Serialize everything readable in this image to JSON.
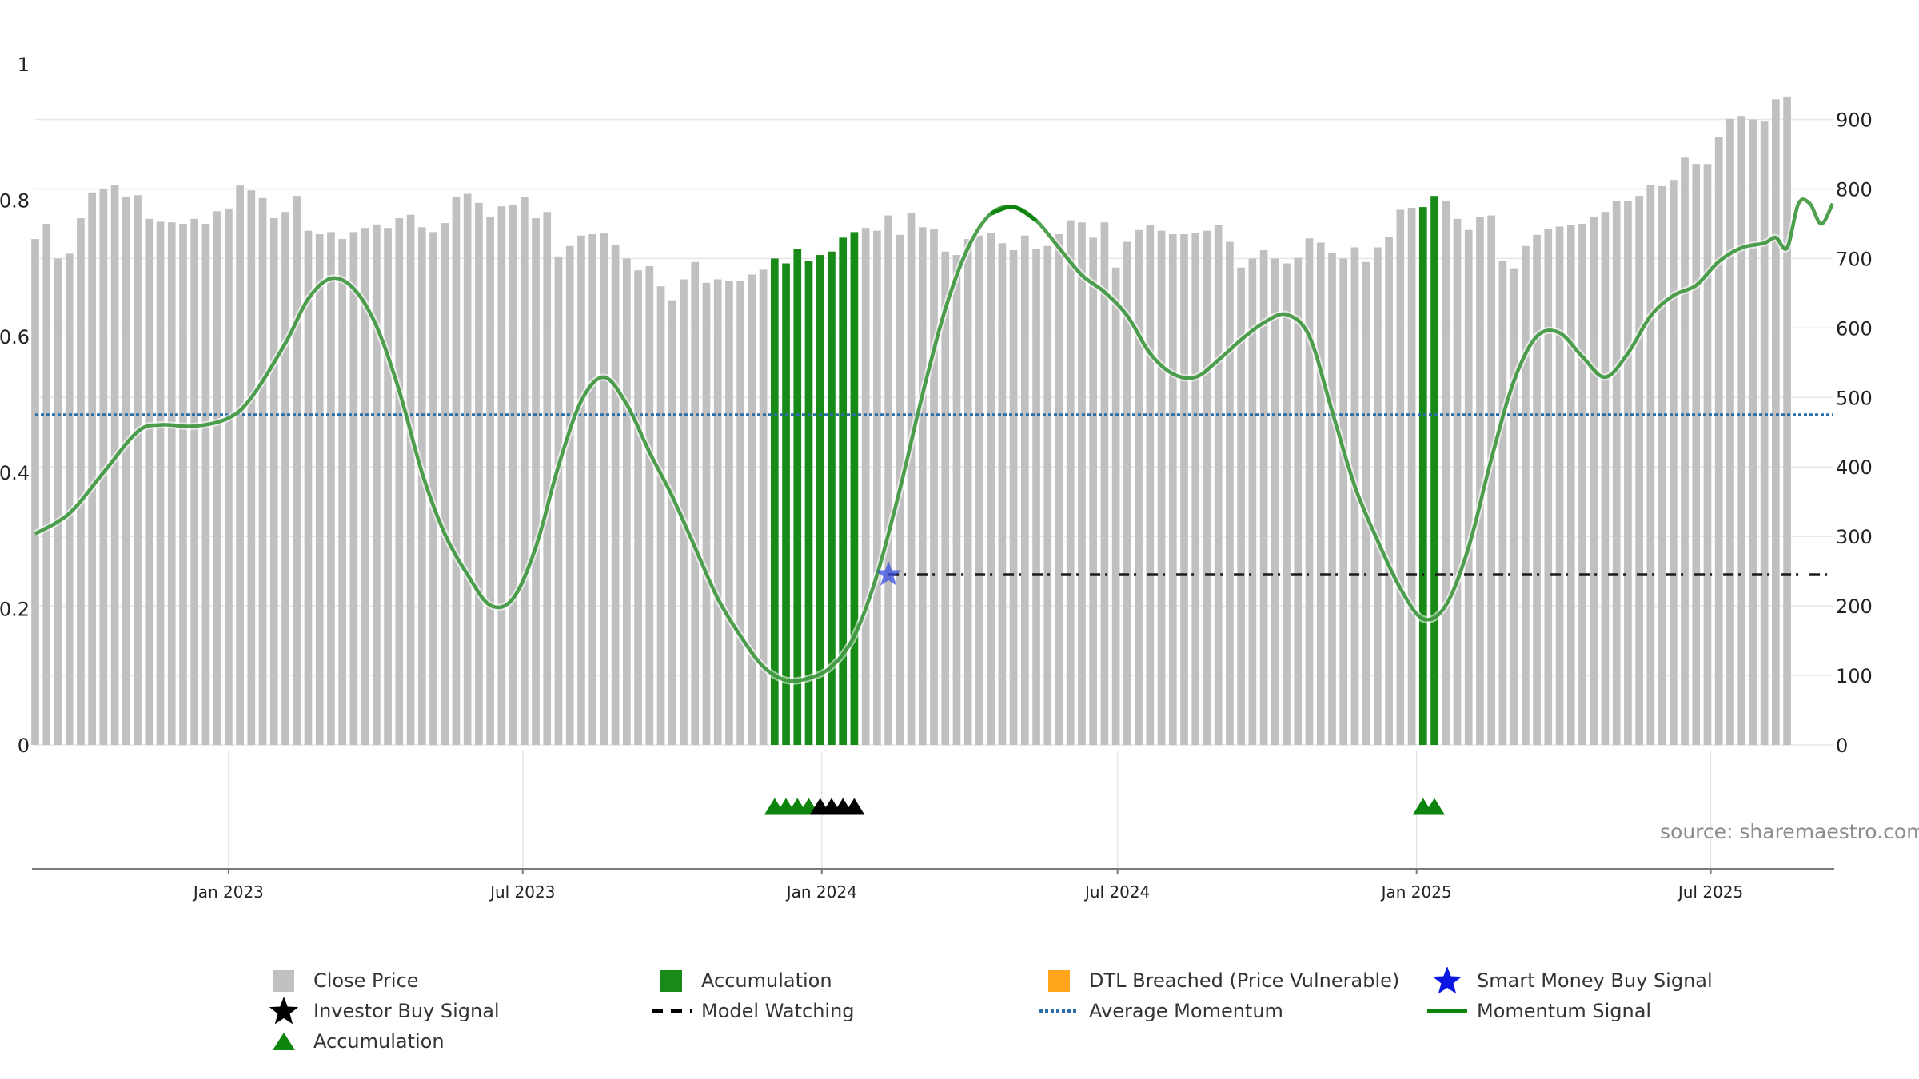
{
  "chart_data": {
    "type": "bar",
    "source_text": "source: sharemaestro.com",
    "left_axis": {
      "ylim": [
        0,
        1
      ],
      "ticks": [
        "0",
        "0.2",
        "0.4",
        "0.6",
        "0.8",
        "1"
      ]
    },
    "right_axis": {
      "ylim": [
        0,
        980
      ],
      "ticks": [
        "0",
        "100",
        "200",
        "300",
        "400",
        "500",
        "600",
        "700",
        "800",
        "900"
      ]
    },
    "x_axis": {
      "start": "2022-09-04",
      "end": "2025-09-14",
      "ticks": [
        {
          "date": "2023-01-01",
          "label": "Jan 2023"
        },
        {
          "date": "2023-07-01",
          "label": "Jul 2023"
        },
        {
          "date": "2024-01-01",
          "label": "Jan 2024"
        },
        {
          "date": "2024-07-01",
          "label": "Jul 2024"
        },
        {
          "date": "2025-01-01",
          "label": "Jan 2025"
        },
        {
          "date": "2025-07-01",
          "label": "Jul 2025"
        }
      ]
    },
    "close_price": {
      "start": "2022-09-04",
      "interval_days": 7,
      "values": [
        728,
        750,
        700,
        707,
        758,
        795,
        800,
        806,
        788,
        791,
        757,
        753,
        752,
        750,
        757,
        750,
        768,
        772,
        805,
        798,
        787,
        758,
        767,
        790,
        740,
        735,
        738,
        728,
        738,
        744,
        749,
        744,
        758,
        763,
        745,
        738,
        751,
        788,
        793,
        780,
        760,
        775,
        777,
        788,
        758,
        767,
        703,
        718,
        733,
        735,
        736,
        720,
        700,
        683,
        689,
        660,
        640,
        670,
        695,
        665,
        670,
        668,
        668,
        677,
        684,
        700,
        693,
        714,
        697,
        705,
        710,
        730,
        738,
        744,
        740,
        762,
        734,
        765,
        745,
        742,
        710,
        705,
        728,
        733,
        737,
        722,
        712,
        733,
        714,
        718,
        735,
        755,
        752,
        730,
        752,
        687,
        724,
        741,
        748,
        740,
        735,
        735,
        737,
        740,
        748,
        724,
        687,
        700,
        712,
        700,
        693,
        701,
        729,
        723,
        708,
        700,
        716,
        695,
        716,
        731,
        770,
        773,
        774,
        790,
        783,
        757,
        741,
        760,
        762,
        696,
        686,
        718,
        734,
        742,
        746,
        748,
        750,
        760,
        767,
        783,
        783,
        790,
        806,
        804,
        813,
        845,
        836,
        836,
        875,
        901,
        905,
        900,
        897,
        929,
        933
      ],
      "accumulation_ranges": [
        {
          "from": "2023-12-03",
          "to": "2024-01-21"
        },
        {
          "from": "2025-01-05",
          "to": "2025-01-12"
        }
      ]
    },
    "momentum": {
      "points": [
        [
          "2022-09-04",
          0.31
        ],
        [
          "2022-09-25",
          0.34
        ],
        [
          "2022-10-16",
          0.4
        ],
        [
          "2022-11-06",
          0.46
        ],
        [
          "2022-11-20",
          0.47
        ],
        [
          "2022-12-11",
          0.468
        ],
        [
          "2023-01-01",
          0.48
        ],
        [
          "2023-01-15",
          0.51
        ],
        [
          "2023-02-05",
          0.59
        ],
        [
          "2023-02-19",
          0.655
        ],
        [
          "2023-03-05",
          0.685
        ],
        [
          "2023-03-19",
          0.67
        ],
        [
          "2023-04-02",
          0.615
        ],
        [
          "2023-04-16",
          0.52
        ],
        [
          "2023-04-30",
          0.4
        ],
        [
          "2023-05-14",
          0.31
        ],
        [
          "2023-05-28",
          0.25
        ],
        [
          "2023-06-11",
          0.205
        ],
        [
          "2023-06-25",
          0.215
        ],
        [
          "2023-07-09",
          0.29
        ],
        [
          "2023-07-23",
          0.41
        ],
        [
          "2023-08-06",
          0.505
        ],
        [
          "2023-08-20",
          0.54
        ],
        [
          "2023-09-03",
          0.5
        ],
        [
          "2023-09-17",
          0.43
        ],
        [
          "2023-10-01",
          0.365
        ],
        [
          "2023-10-15",
          0.29
        ],
        [
          "2023-10-29",
          0.215
        ],
        [
          "2023-11-12",
          0.16
        ],
        [
          "2023-11-26",
          0.115
        ],
        [
          "2023-12-10",
          0.095
        ],
        [
          "2023-12-24",
          0.098
        ],
        [
          "2024-01-07",
          0.115
        ],
        [
          "2024-01-21",
          0.16
        ],
        [
          "2024-02-04",
          0.25
        ],
        [
          "2024-02-18",
          0.375
        ],
        [
          "2024-03-03",
          0.515
        ],
        [
          "2024-03-17",
          0.64
        ],
        [
          "2024-03-31",
          0.73
        ],
        [
          "2024-04-14",
          0.78
        ],
        [
          "2024-04-28",
          0.79
        ],
        [
          "2024-05-12",
          0.77
        ],
        [
          "2024-05-26",
          0.73
        ],
        [
          "2024-06-09",
          0.69
        ],
        [
          "2024-06-23",
          0.665
        ],
        [
          "2024-07-07",
          0.63
        ],
        [
          "2024-07-21",
          0.575
        ],
        [
          "2024-08-04",
          0.545
        ],
        [
          "2024-08-18",
          0.54
        ],
        [
          "2024-09-01",
          0.565
        ],
        [
          "2024-09-15",
          0.595
        ],
        [
          "2024-09-29",
          0.62
        ],
        [
          "2024-10-13",
          0.632
        ],
        [
          "2024-10-27",
          0.6
        ],
        [
          "2024-11-10",
          0.49
        ],
        [
          "2024-11-24",
          0.38
        ],
        [
          "2024-12-08",
          0.3
        ],
        [
          "2024-12-22",
          0.23
        ],
        [
          "2025-01-05",
          0.185
        ],
        [
          "2025-01-19",
          0.205
        ],
        [
          "2025-02-02",
          0.29
        ],
        [
          "2025-02-16",
          0.42
        ],
        [
          "2025-03-02",
          0.535
        ],
        [
          "2025-03-16",
          0.6
        ],
        [
          "2025-03-30",
          0.605
        ],
        [
          "2025-04-13",
          0.57
        ],
        [
          "2025-04-27",
          0.54
        ],
        [
          "2025-05-11",
          0.575
        ],
        [
          "2025-05-25",
          0.63
        ],
        [
          "2025-06-08",
          0.66
        ],
        [
          "2025-06-22",
          0.675
        ],
        [
          "2025-07-06",
          0.71
        ],
        [
          "2025-07-20",
          0.73
        ],
        [
          "2025-08-03",
          0.737
        ],
        [
          "2025-08-10",
          0.745
        ],
        [
          "2025-08-17",
          0.73
        ],
        [
          "2025-08-24",
          0.795
        ],
        [
          "2025-08-31",
          0.795
        ],
        [
          "2025-09-07",
          0.765
        ],
        [
          "2025-09-14",
          0.795
        ]
      ],
      "highlight_ranges": [
        {
          "from": "2024-04-07",
          "to": "2024-05-19"
        }
      ]
    },
    "average_momentum": 0.485,
    "model_watching": {
      "from": "2024-02-11",
      "to": "2025-09-14",
      "value": 0.25
    },
    "smart_money_buy_signals": [
      {
        "date": "2024-02-11",
        "value": 0.25
      }
    ],
    "accumulation_markers": [
      "2023-12-03",
      "2023-12-10",
      "2023-12-17",
      "2023-12-24",
      "2025-01-05",
      "2025-01-12"
    ],
    "investor_buy_markers": [
      "2023-12-31",
      "2024-01-07",
      "2024-01-14",
      "2024-01-21"
    ],
    "legend": [
      {
        "label": "Close Price",
        "symbol": "square",
        "color": "#c0c0c0"
      },
      {
        "label": "Accumulation",
        "symbol": "square",
        "color": "#178a17"
      },
      {
        "label": "DTL Breached (Price Vulnerable)",
        "symbol": "square",
        "color": "#ffa61a"
      },
      {
        "label": "Smart Money Buy Signal",
        "symbol": "star",
        "color": "#0b17e0"
      },
      {
        "label": "Investor Buy Signal",
        "symbol": "star",
        "color": "#000000"
      },
      {
        "label": "Model Watching",
        "symbol": "dash",
        "color": "#000000"
      },
      {
        "label": "Average Momentum",
        "symbol": "dot",
        "color": "#2a6fa8"
      },
      {
        "label": "Momentum Signal",
        "symbol": "line",
        "color": "#0d850d"
      },
      {
        "label": "Accumulation",
        "symbol": "triangle",
        "color": "#0d850d"
      }
    ],
    "colors": {
      "bar": "#c0c0c0",
      "accumulation_bar": "#178a17",
      "momentum": "#2f8f2f",
      "momentum_highlight": "#0d850d",
      "avg_momentum": "#2a6fa8",
      "model_watching": "#1a1a1a",
      "smart_star": "#3b4fe0",
      "investor_marker": "#000000",
      "accumulation_marker": "#0d850d",
      "grid": "#e6e6e6"
    }
  }
}
